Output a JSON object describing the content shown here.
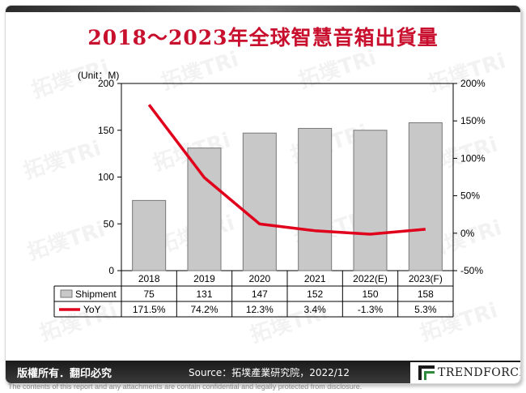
{
  "title": "2018～2023年全球智慧音箱出貨量",
  "watermark_text": "拓墣TRi",
  "chart_data": {
    "type": "bar",
    "unit_label": "(Unit：M)",
    "categories": [
      "2018",
      "2019",
      "2020",
      "2021",
      "2022(E)",
      "2023(F)"
    ],
    "series": [
      {
        "name": "Shipment",
        "type": "bar",
        "axis": "left",
        "color": "#c8c8c8",
        "values": [
          75,
          131,
          147,
          152,
          150,
          158
        ],
        "labels": [
          "75",
          "131",
          "147",
          "152",
          "150",
          "158"
        ]
      },
      {
        "name": "YoY",
        "type": "line",
        "axis": "right",
        "color": "#e0001b",
        "values": [
          171.5,
          74.2,
          12.3,
          3.4,
          -1.3,
          5.3
        ],
        "labels": [
          "171.5%",
          "74.2%",
          "12.3%",
          "3.4%",
          "-1.3%",
          "5.3%"
        ]
      }
    ],
    "ylim": [
      0,
      200
    ],
    "y_ticks": [
      "0",
      "50",
      "100",
      "150",
      "200"
    ],
    "y2lim": [
      -50,
      200
    ],
    "y2_ticks": [
      "-50%",
      "0%",
      "50%",
      "100%",
      "150%",
      "200%"
    ],
    "grid": false,
    "legend_placement": "data-table"
  },
  "footer": {
    "copyright": "版權所有．翻印必究",
    "source": "Source：拓墣產業研究院，2022/12",
    "brand": "TRENDFORCE",
    "disclaimer": "The contents of this report and any attachments are contain confidential and legally protected from disclosure."
  }
}
